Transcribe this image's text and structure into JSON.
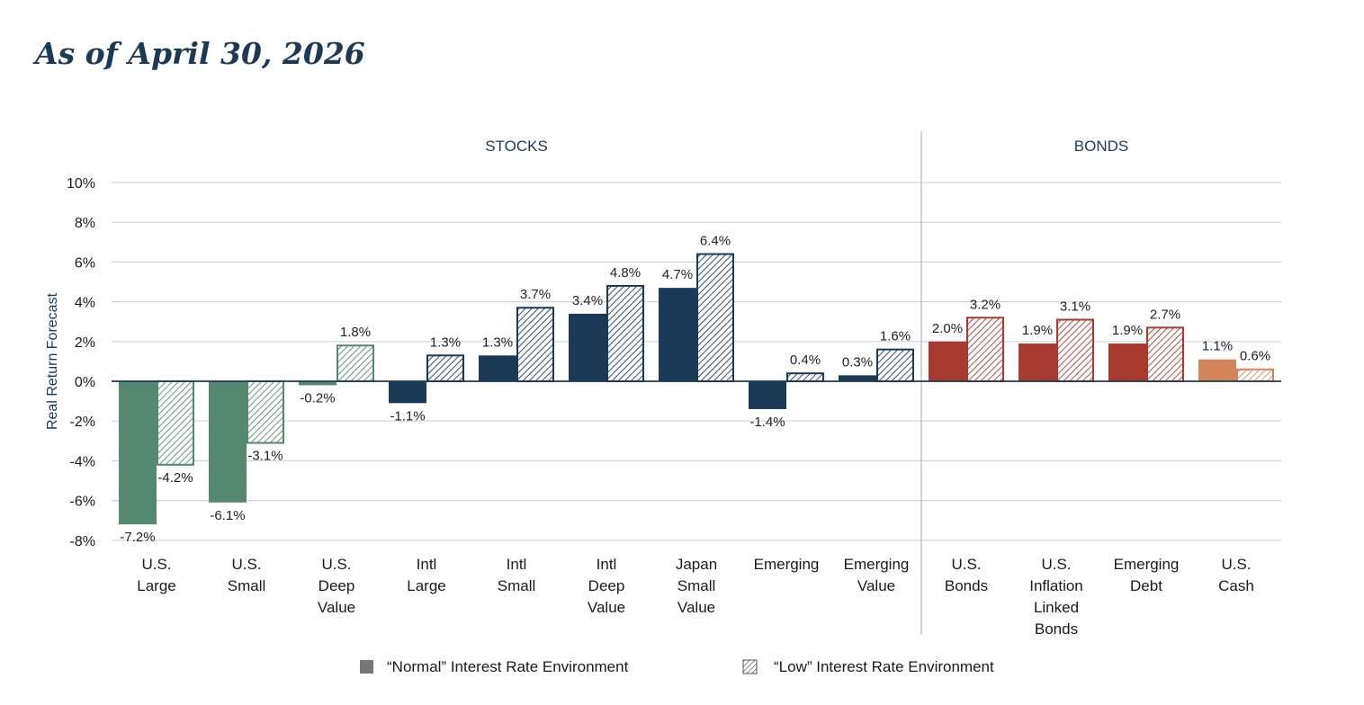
{
  "header": {
    "date_title": "As of April 30, 2026"
  },
  "chart_data": {
    "type": "bar",
    "ylabel": "Real Return Forecast",
    "ylim": [
      -8,
      10
    ],
    "yticks": [
      10,
      8,
      6,
      4,
      2,
      0,
      -2,
      -4,
      -6,
      -8
    ],
    "ytick_labels": [
      "10%",
      "8%",
      "6%",
      "4%",
      "2%",
      "0%",
      "-2%",
      "-4%",
      "-6%",
      "-8%"
    ],
    "grid": true,
    "groups": [
      {
        "label": "STOCKS",
        "start": 0,
        "end": 8
      },
      {
        "label": "BONDS",
        "start": 9,
        "end": 12
      }
    ],
    "categories": [
      {
        "label": [
          "U.S.",
          "Large"
        ],
        "normal": -7.2,
        "low": -4.2,
        "normal_label": "-7.2%",
        "low_label": "-4.2%",
        "color": "#558870"
      },
      {
        "label": [
          "U.S.",
          "Small"
        ],
        "normal": -6.1,
        "low": -3.1,
        "normal_label": "-6.1%",
        "low_label": "-3.1%",
        "color": "#558870"
      },
      {
        "label": [
          "U.S.",
          "Deep",
          "Value"
        ],
        "normal": -0.2,
        "low": 1.8,
        "normal_label": "-0.2%",
        "low_label": "1.8%",
        "color": "#558870"
      },
      {
        "label": [
          "Intl",
          "Large"
        ],
        "normal": -1.1,
        "low": 1.3,
        "normal_label": "-1.1%",
        "low_label": "1.3%",
        "color": "#1b3a57"
      },
      {
        "label": [
          "Intl",
          "Small"
        ],
        "normal": 1.3,
        "low": 3.7,
        "normal_label": "1.3%",
        "low_label": "3.7%",
        "color": "#1b3a57"
      },
      {
        "label": [
          "Intl",
          "Deep",
          "Value"
        ],
        "normal": 3.4,
        "low": 4.8,
        "normal_label": "3.4%",
        "low_label": "4.8%",
        "color": "#1b3a57"
      },
      {
        "label": [
          "Japan",
          "Small",
          "Value"
        ],
        "normal": 4.7,
        "low": 6.4,
        "normal_label": "4.7%",
        "low_label": "6.4%",
        "color": "#1b3a57"
      },
      {
        "label": [
          "Emerging"
        ],
        "normal": -1.4,
        "low": 0.4,
        "normal_label": "-1.4%",
        "low_label": "0.4%",
        "color": "#1b3a57"
      },
      {
        "label": [
          "Emerging",
          "Value"
        ],
        "normal": 0.3,
        "low": 1.6,
        "normal_label": "0.3%",
        "low_label": "1.6%",
        "color": "#1b3a57"
      },
      {
        "label": [
          "U.S.",
          "Bonds"
        ],
        "normal": 2.0,
        "low": 3.2,
        "normal_label": "2.0%",
        "low_label": "3.2%",
        "color": "#a83a2f"
      },
      {
        "label": [
          "U.S.",
          "Inflation",
          "Linked",
          "Bonds"
        ],
        "normal": 1.9,
        "low": 3.1,
        "normal_label": "1.9%",
        "low_label": "3.1%",
        "color": "#a83a2f"
      },
      {
        "label": [
          "Emerging",
          "Debt"
        ],
        "normal": 1.9,
        "low": 2.7,
        "normal_label": "1.9%",
        "low_label": "2.7%",
        "color": "#a83a2f"
      },
      {
        "label": [
          "U.S.",
          "Cash"
        ],
        "normal": 1.1,
        "low": 0.6,
        "normal_label": "1.1%",
        "low_label": "0.6%",
        "color": "#d4855a"
      }
    ],
    "series": [
      {
        "name": "“Normal” Interest Rate Environment",
        "key": "normal"
      },
      {
        "name": "“Low” Interest Rate Environment",
        "key": "low"
      }
    ],
    "legend_position": "bottom",
    "colors": {
      "axis": "#1b3a57",
      "grid": "#c9d6e0",
      "divider": "#b0b7bf",
      "legend_swatch": "#777777"
    }
  }
}
